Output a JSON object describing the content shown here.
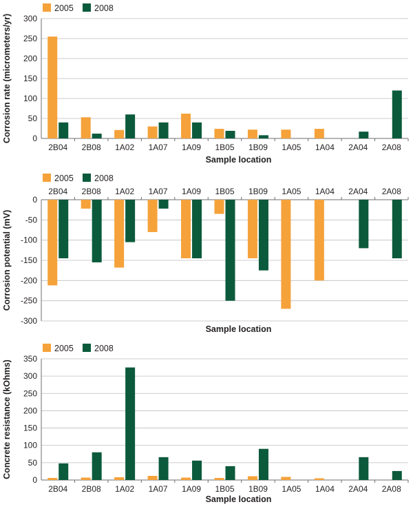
{
  "colors": {
    "2005": "#f5a23a",
    "2008": "#0b5a3c",
    "axis": "#6d6e71",
    "grid": "#bcbec0"
  },
  "chart_data": [
    {
      "type": "bar",
      "legend": "top-left",
      "grid": true,
      "xlabel": "Sample location",
      "ylabel": "Corrosion rate (micrometers/yr)",
      "ylim": [
        0,
        300
      ],
      "yticks": [
        0,
        50,
        100,
        150,
        200,
        250,
        300
      ],
      "x_axis_position": "bottom",
      "categories": [
        "2B04",
        "2B08",
        "1A02",
        "1A07",
        "1A09",
        "1B05",
        "1B09",
        "1A05",
        "1A04",
        "2A04",
        "2A08"
      ],
      "series": [
        {
          "name": "2005",
          "color": "#f5a23a",
          "values": [
            255,
            53,
            21,
            30,
            62,
            24,
            22,
            22,
            24,
            0,
            0
          ]
        },
        {
          "name": "2008",
          "color": "#0b5a3c",
          "values": [
            40,
            12,
            60,
            40,
            40,
            19,
            8,
            0,
            0,
            17,
            120
          ]
        }
      ]
    },
    {
      "type": "bar",
      "legend": "top-left",
      "grid": true,
      "xlabel": "Sample location",
      "ylabel": "Corrosion potential (mV)",
      "ylim": [
        -300,
        0
      ],
      "yticks": [
        0,
        -50,
        -100,
        -150,
        -200,
        -250,
        -300
      ],
      "x_axis_position": "top",
      "categories": [
        "2B04",
        "2B08",
        "1A02",
        "1A07",
        "1A09",
        "1B05",
        "1B09",
        "1A05",
        "1A04",
        "2A04",
        "2A08"
      ],
      "series": [
        {
          "name": "2005",
          "color": "#f5a23a",
          "values": [
            -212,
            -22,
            -168,
            -80,
            -145,
            -35,
            -145,
            -270,
            -200,
            0,
            0
          ]
        },
        {
          "name": "2008",
          "color": "#0b5a3c",
          "values": [
            -145,
            -155,
            -105,
            -22,
            -145,
            -250,
            -175,
            0,
            0,
            -120,
            -145
          ]
        }
      ]
    },
    {
      "type": "bar",
      "legend": "top-left",
      "grid": true,
      "xlabel": "Sample location",
      "ylabel": "Concrete resistance (kOhms)",
      "ylim": [
        0,
        350
      ],
      "yticks": [
        0,
        50,
        100,
        150,
        200,
        250,
        300,
        350
      ],
      "x_axis_position": "bottom",
      "categories": [
        "2B04",
        "2B08",
        "1A02",
        "1A07",
        "1A09",
        "1B05",
        "1B09",
        "1A05",
        "1A04",
        "2A04",
        "2A08"
      ],
      "series": [
        {
          "name": "2005",
          "color": "#f5a23a",
          "values": [
            6,
            7,
            8,
            12,
            7,
            6,
            11,
            9,
            5,
            0,
            0
          ]
        },
        {
          "name": "2008",
          "color": "#0b5a3c",
          "values": [
            48,
            80,
            325,
            66,
            56,
            40,
            90,
            0,
            0,
            66,
            26
          ]
        }
      ]
    }
  ]
}
